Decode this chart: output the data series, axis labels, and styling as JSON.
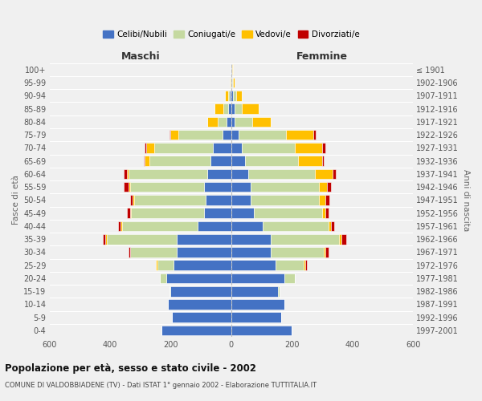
{
  "age_groups": [
    "0-4",
    "5-9",
    "10-14",
    "15-19",
    "20-24",
    "25-29",
    "30-34",
    "35-39",
    "40-44",
    "45-49",
    "50-54",
    "55-59",
    "60-64",
    "65-69",
    "70-74",
    "75-79",
    "80-84",
    "85-89",
    "90-94",
    "95-99",
    "100+"
  ],
  "birth_years": [
    "1997-2001",
    "1992-1996",
    "1987-1991",
    "1982-1986",
    "1977-1981",
    "1972-1976",
    "1967-1971",
    "1962-1966",
    "1957-1961",
    "1952-1956",
    "1947-1951",
    "1942-1946",
    "1937-1941",
    "1932-1936",
    "1927-1931",
    "1922-1926",
    "1917-1921",
    "1912-1916",
    "1907-1911",
    "1902-1906",
    "≤ 1901"
  ],
  "colors": {
    "celibi": "#4472c4",
    "coniugati": "#c5d9a0",
    "vedovi": "#ffc000",
    "divorziati": "#c00000"
  },
  "maschi": {
    "celibi": [
      230,
      195,
      210,
      200,
      215,
      190,
      180,
      180,
      110,
      90,
      85,
      90,
      80,
      70,
      60,
      30,
      15,
      10,
      5,
      3,
      2
    ],
    "coniugati": [
      0,
      0,
      0,
      5,
      20,
      55,
      155,
      230,
      250,
      240,
      235,
      245,
      260,
      200,
      195,
      145,
      30,
      15,
      5,
      0,
      0
    ],
    "vedovi": [
      0,
      0,
      0,
      0,
      0,
      5,
      0,
      5,
      5,
      5,
      5,
      5,
      5,
      15,
      25,
      25,
      35,
      30,
      10,
      2,
      0
    ],
    "divorziati": [
      0,
      0,
      0,
      0,
      0,
      0,
      5,
      10,
      10,
      10,
      10,
      15,
      10,
      5,
      5,
      5,
      0,
      0,
      0,
      0,
      0
    ]
  },
  "femmine": {
    "celibi": [
      200,
      165,
      175,
      155,
      175,
      145,
      130,
      130,
      105,
      75,
      65,
      65,
      55,
      45,
      35,
      25,
      10,
      10,
      5,
      3,
      2
    ],
    "coniugati": [
      0,
      0,
      0,
      5,
      35,
      95,
      175,
      225,
      215,
      225,
      225,
      225,
      220,
      175,
      175,
      155,
      60,
      25,
      10,
      2,
      0
    ],
    "vedovi": [
      0,
      0,
      0,
      0,
      0,
      5,
      5,
      10,
      10,
      10,
      20,
      25,
      60,
      80,
      90,
      90,
      60,
      55,
      20,
      5,
      3
    ],
    "divorziati": [
      0,
      0,
      0,
      0,
      0,
      5,
      10,
      15,
      10,
      10,
      15,
      15,
      10,
      5,
      10,
      10,
      0,
      0,
      0,
      0,
      0
    ]
  },
  "title": "Popolazione per età, sesso e stato civile - 2002",
  "subtitle": "COMUNE DI VALDOBBIADENE (TV) - Dati ISTAT 1° gennaio 2002 - Elaborazione TUTTITALIA.IT",
  "xlabel_left": "Maschi",
  "xlabel_right": "Femmine",
  "ylabel_left": "Fasce di età",
  "ylabel_right": "Anni di nascita",
  "xlim": 600,
  "legend_labels": [
    "Celibi/Nubili",
    "Coniugati/e",
    "Vedovi/e",
    "Divorziati/e"
  ],
  "background_color": "#f0f0f0",
  "grid_color": "#ffffff"
}
